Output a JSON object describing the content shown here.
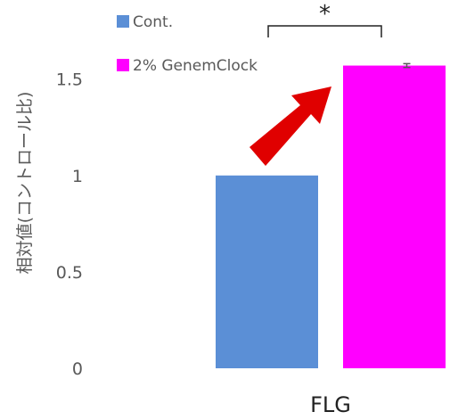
{
  "chart_data": {
    "type": "bar",
    "categories": [
      "FLG"
    ],
    "series": [
      {
        "name": "Cont.",
        "values": [
          1.0
        ],
        "color": "#5b8fd6"
      },
      {
        "name": "2% GenemClock",
        "values": [
          1.57
        ],
        "error": [
          0.01
        ],
        "color": "#ff00ff"
      }
    ],
    "ylabel": "相対値(コントロール比)",
    "yticks": [
      0,
      0.5,
      1,
      1.5
    ],
    "ytick_labels": [
      "0",
      "0.5",
      "1",
      "1.5"
    ],
    "ylim": [
      0,
      1.85
    ],
    "grid": false,
    "legend_placement": "top-left",
    "significance": {
      "label": "*",
      "between": [
        "Cont.",
        "2% GenemClock"
      ]
    },
    "annotation": {
      "type": "arrow",
      "color": "#e00000",
      "points_to": "2% GenemClock"
    }
  }
}
